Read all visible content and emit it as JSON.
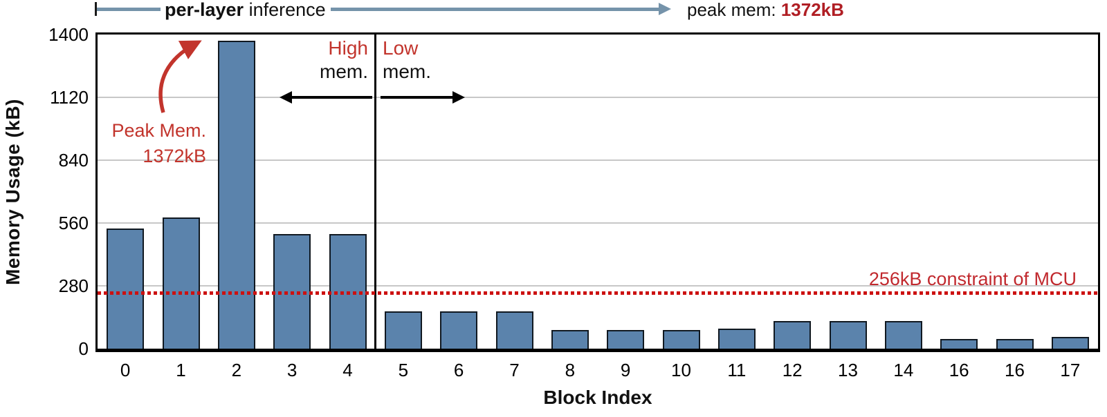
{
  "chart_data": {
    "type": "bar",
    "title": "",
    "xlabel": "Block Index",
    "ylabel": "Memory Usage (kB)",
    "categories": [
      "0",
      "1",
      "2",
      "3",
      "4",
      "5",
      "6",
      "7",
      "8",
      "9",
      "10",
      "11",
      "12",
      "13",
      "14",
      "16",
      "16",
      "17"
    ],
    "values": [
      536,
      584,
      1372,
      512,
      512,
      165,
      165,
      165,
      84,
      84,
      84,
      90,
      122,
      122,
      122,
      42,
      42,
      52
    ],
    "ylim": [
      0,
      1400
    ],
    "yticks": [
      0,
      280,
      560,
      840,
      1120,
      1400
    ],
    "grid": "horizontal",
    "legend_position": "none",
    "bar_color": "#5b83ac",
    "bar_border_color": "#101820",
    "region_divider_after_category_index": 4,
    "constraint_line": {
      "value_kb": 256,
      "style": "dotted",
      "color": "#cc1111"
    },
    "peak_memory_kb": 1372
  },
  "annotations": {
    "top_arrow": {
      "range_bold": "per-layer",
      "range_rest": " inference",
      "peak_prefix": "peak mem: ",
      "peak_value": "1372kB",
      "line_color": "#7593aa"
    },
    "peak_callout": {
      "line1": "Peak Mem.",
      "line2": "1372kB",
      "color": "#c2342c"
    },
    "high_region": {
      "word": "High",
      "mem": "mem."
    },
    "low_region": {
      "word": "Low",
      "mem": "mem."
    },
    "constraint_label": "256kB constraint of MCU"
  }
}
